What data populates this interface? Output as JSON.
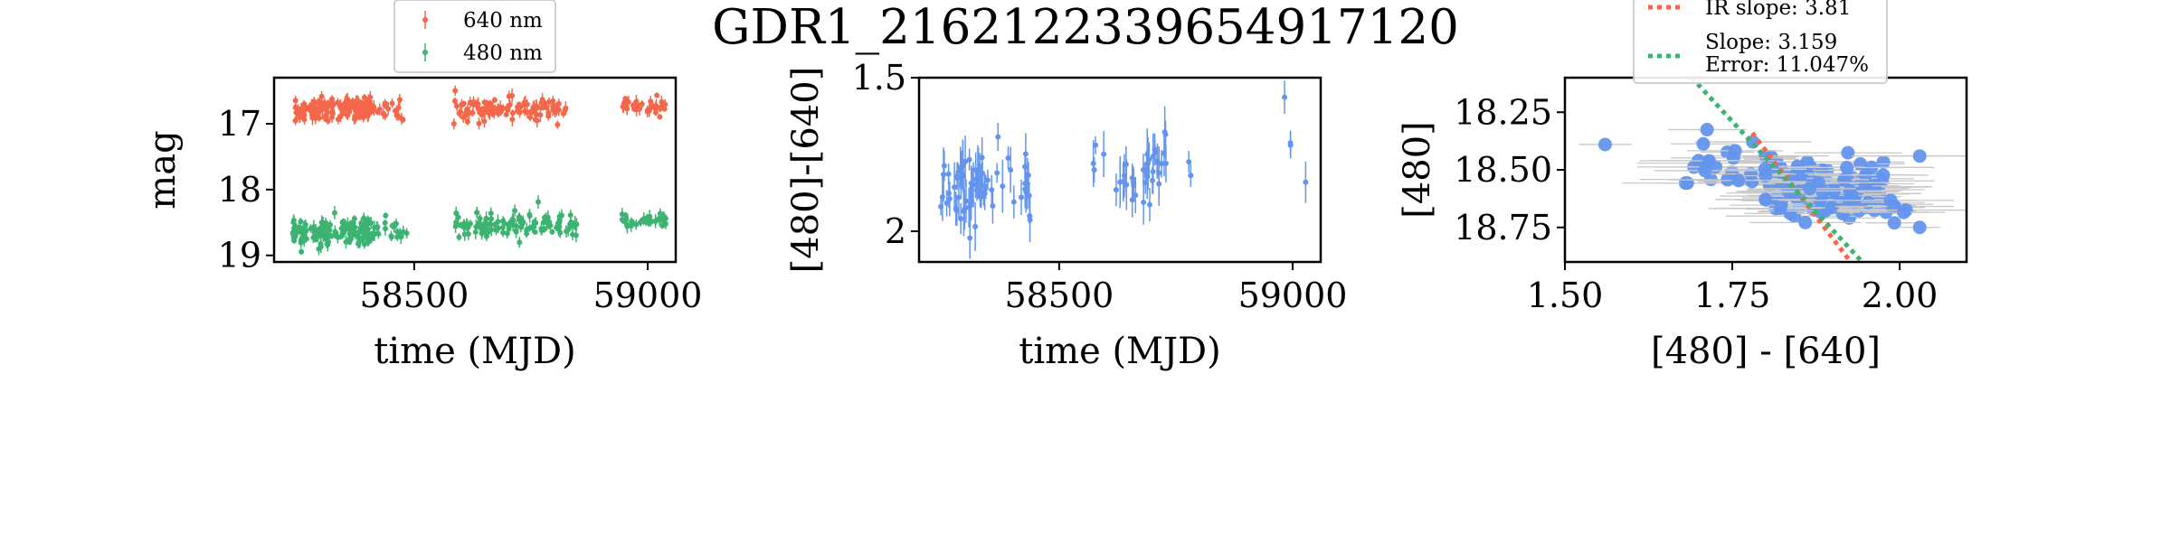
{
  "colors": {
    "red": "#f4674b",
    "green": "#3cb371",
    "blue": "#6495ed",
    "errbar_gray": "#c8c8c8"
  },
  "chart_data": {
    "title": "GDR1_2162122339654917120",
    "panels": [
      {
        "type": "scatter",
        "xlabel": "time (MJD)",
        "ylabel": "mag",
        "xlim": [
          58200,
          59060
        ],
        "ylim": [
          19.1,
          16.3
        ],
        "y_inverted": true,
        "xticks": [
          58500,
          59000
        ],
        "yticks": [
          17,
          18,
          19
        ],
        "legend_position": "top",
        "series": [
          {
            "name": "640 nm",
            "color_key": "red",
            "error_bars": true,
            "clusters": [
              {
                "x_range": [
                  58245,
                  58410
                ],
                "y_center": 16.78,
                "y_spread": 0.18,
                "count": 150
              },
              {
                "x_range": [
                  58412,
                  58480
                ],
                "y_center": 16.8,
                "y_spread": 0.16,
                "count": 18
              },
              {
                "x_range": [
                  58585,
                  58825
                ],
                "y_center": 16.78,
                "y_spread": 0.18,
                "count": 110
              },
              {
                "x_range": [
                  58945,
                  59040
                ],
                "y_center": 16.72,
                "y_spread": 0.14,
                "count": 35
              }
            ]
          },
          {
            "name": "480 nm",
            "color_key": "green",
            "error_bars": true,
            "clusters": [
              {
                "x_range": [
                  58240,
                  58410
                ],
                "y_center": 18.65,
                "y_spread": 0.22,
                "count": 150
              },
              {
                "x_range": [
                  58412,
                  58485
                ],
                "y_center": 18.6,
                "y_spread": 0.18,
                "count": 20
              },
              {
                "x_range": [
                  58585,
                  58850
                ],
                "y_center": 18.55,
                "y_spread": 0.2,
                "count": 110
              },
              {
                "x_range": [
                  58945,
                  59040
                ],
                "y_center": 18.48,
                "y_spread": 0.14,
                "count": 35
              }
            ]
          }
        ]
      },
      {
        "type": "scatter",
        "xlabel": "time (MJD)",
        "ylabel": "[480]-[640]",
        "xlim": [
          58200,
          59060
        ],
        "ylim": [
          2.1,
          1.5
        ],
        "y_inverted": true,
        "xticks": [
          58500,
          59000
        ],
        "yticks": [
          1.5,
          2.0
        ],
        "series": [
          {
            "name": "",
            "color_key": "blue",
            "error_bars": true,
            "clusters": [
              {
                "x_range": [
                  58245,
                  58345
                ],
                "y_center": 1.86,
                "y_spread": 0.13,
                "count": 55
              },
              {
                "x_range": [
                  58345,
                  58440
                ],
                "y_center": 1.85,
                "y_spread": 0.12,
                "count": 22
              },
              {
                "x_range": [
                  58570,
                  58600
                ],
                "y_center": 1.76,
                "y_spread": 0.05,
                "count": 4
              },
              {
                "x_range": [
                  58620,
                  58665
                ],
                "y_center": 1.85,
                "y_spread": 0.07,
                "count": 12
              },
              {
                "x_range": [
                  58680,
                  58730
                ],
                "y_center": 1.81,
                "y_spread": 0.1,
                "count": 24
              },
              {
                "x_range": [
                  58760,
                  58790
                ],
                "y_center": 1.85,
                "y_spread": 0.05,
                "count": 2
              },
              {
                "x_range": [
                  58980,
                  58985
                ],
                "y_center": 1.56,
                "y_spread": 0.01,
                "count": 1
              },
              {
                "x_range": [
                  58995,
                  59000
                ],
                "y_center": 1.72,
                "y_spread": 0.02,
                "count": 2
              },
              {
                "x_range": [
                  59025,
                  59030
                ],
                "y_center": 1.84,
                "y_spread": 0.01,
                "count": 1
              }
            ]
          }
        ]
      },
      {
        "type": "scatter",
        "xlabel": "[480] - [640]",
        "ylabel": "[480]",
        "xlim": [
          1.5,
          2.1
        ],
        "ylim": [
          18.9,
          18.1
        ],
        "y_inverted": true,
        "xticks": [
          1.5,
          1.75,
          2.0
        ],
        "xticklabels": [
          "1.50",
          "1.75",
          "2.00"
        ],
        "yticks": [
          18.25,
          18.5,
          18.75
        ],
        "yticklabels": [
          "18.25",
          "18.50",
          "18.75"
        ],
        "legend_position": "top",
        "series": [
          {
            "name": "",
            "color_key": "blue",
            "error_bars": true,
            "clusters": [
              {
                "x_range": [
                  1.8,
                  1.98
                ],
                "y_center": 18.58,
                "y_spread": 0.14,
                "count": 140
              },
              {
                "x_range": [
                  1.68,
                  1.8
                ],
                "y_center": 18.5,
                "y_spread": 0.12,
                "count": 25
              },
              {
                "x_range": [
                  1.98,
                  2.03
                ],
                "y_center": 18.68,
                "y_spread": 0.08,
                "count": 6
              }
            ],
            "points": [
              [
                1.56,
                18.39
              ],
              [
                2.03,
                18.44
              ],
              [
                2.03,
                18.75
              ]
            ]
          }
        ],
        "lines": [
          {
            "name": "IR slope: 3.81",
            "color_key": "red",
            "style": "dotted",
            "slope": 3.81,
            "x": [
              1.78,
              1.94
            ],
            "y": [
              18.34,
              18.95
            ]
          },
          {
            "name": "Slope: 3.159",
            "extra_label": "Error: 11.047%",
            "color_key": "green",
            "style": "dotted",
            "slope": 3.159,
            "x": [
              1.68,
              1.96
            ],
            "y": [
              18.07,
              18.95
            ]
          }
        ]
      }
    ]
  }
}
